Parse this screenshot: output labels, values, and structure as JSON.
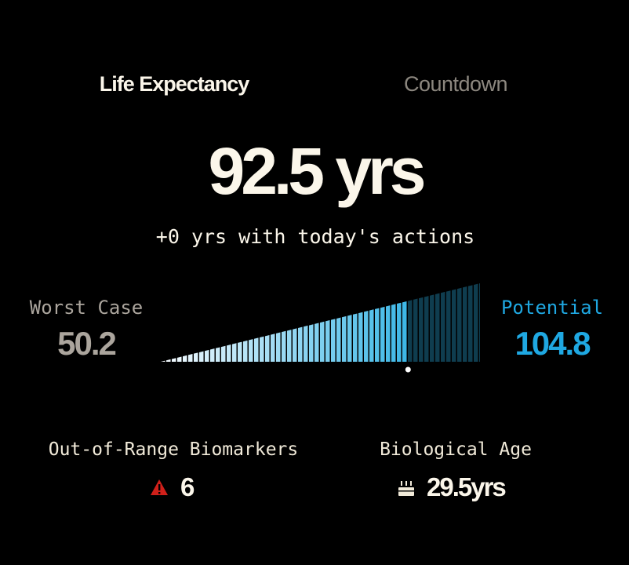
{
  "tabs": [
    "Life Expectancy",
    "Countdown"
  ],
  "headline": "92.5 yrs",
  "subtitle": "+0 yrs with today's actions",
  "gauge": {
    "min_label": "Worst Case",
    "min": 50.2,
    "max_label": "Potential",
    "max": 104.8,
    "value": 92.5
  },
  "stats": [
    {
      "label": "Out-of-Range Biomarkers",
      "value": "6"
    },
    {
      "label": "Biological Age",
      "value": "29.5yrs"
    }
  ]
}
